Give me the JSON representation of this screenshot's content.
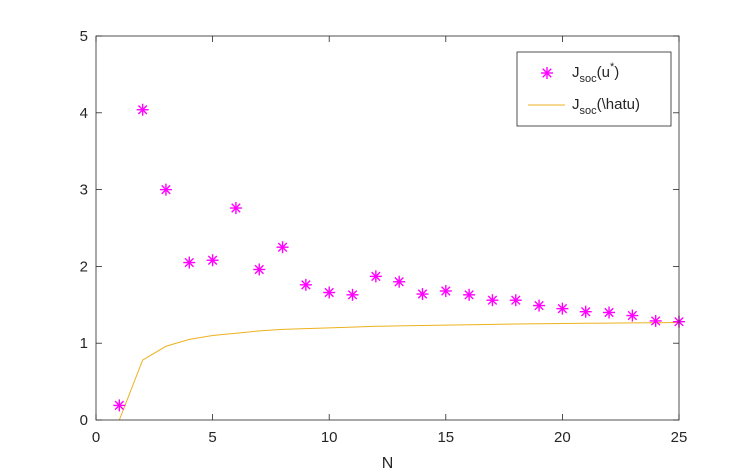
{
  "chart_data": {
    "type": "scatter",
    "xlabel": "N",
    "ylabel": "",
    "xlim": [
      0,
      25
    ],
    "ylim": [
      0,
      5
    ],
    "xticks": [
      0,
      5,
      10,
      15,
      20,
      25
    ],
    "yticks": [
      0,
      1,
      2,
      3,
      4,
      5
    ],
    "grid": false,
    "legend_placement": "top-right",
    "series": [
      {
        "name_main": "J",
        "name_sub": "soc",
        "name_rest": "(u",
        "name_sup": "*",
        "name_end": ")",
        "style": "markers",
        "marker": "asterisk",
        "color": "#ff00ff",
        "x": [
          1,
          2,
          3,
          4,
          5,
          6,
          7,
          8,
          9,
          10,
          11,
          12,
          13,
          14,
          15,
          16,
          17,
          18,
          19,
          20,
          21,
          22,
          23,
          24,
          25
        ],
        "y": [
          0.19,
          4.04,
          3.0,
          2.05,
          2.08,
          2.76,
          1.96,
          2.25,
          1.76,
          1.66,
          1.63,
          1.87,
          1.8,
          1.64,
          1.68,
          1.63,
          1.56,
          1.56,
          1.49,
          1.45,
          1.41,
          1.4,
          1.36,
          1.29,
          1.28
        ]
      },
      {
        "name_main": "J",
        "name_sub": "soc",
        "name_rest": "(\\hatu)",
        "style": "line",
        "color": "#edb120",
        "x": [
          1,
          2,
          3,
          4,
          5,
          6,
          7,
          8,
          9,
          10,
          11,
          12,
          13,
          14,
          15,
          16,
          17,
          18,
          19,
          20,
          21,
          22,
          23,
          24,
          25
        ],
        "y": [
          0.0,
          0.78,
          0.96,
          1.05,
          1.1,
          1.13,
          1.16,
          1.18,
          1.19,
          1.2,
          1.21,
          1.22,
          1.225,
          1.23,
          1.235,
          1.24,
          1.245,
          1.25,
          1.253,
          1.256,
          1.26,
          1.262,
          1.265,
          1.267,
          1.27
        ]
      }
    ]
  }
}
